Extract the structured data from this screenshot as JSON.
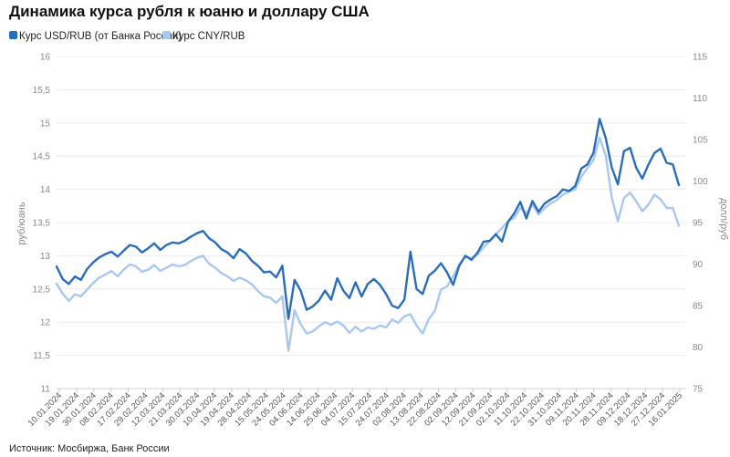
{
  "chart_data": {
    "type": "line",
    "title": "Динамика курса рубля к юаню и доллару США",
    "source": "Источник: Мосбиржа, Банк России",
    "ylabel_left": "руб/юань",
    "ylabel_right": "долл/руб",
    "ylim_left": [
      11,
      16
    ],
    "yticks_left": [
      "11",
      "11,5",
      "12",
      "12,5",
      "13",
      "13,5",
      "14",
      "14,5",
      "15",
      "15,5",
      "16"
    ],
    "ylim_right": [
      75,
      115
    ],
    "yticks_right": [
      "75",
      "80",
      "85",
      "90",
      "95",
      "100",
      "105",
      "110",
      "115"
    ],
    "x_labels": [
      "10.01.2024",
      "19.01.2024",
      "30.01.2024",
      "08.02.2024",
      "17.02.2024",
      "29.02.2024",
      "12.03.2024",
      "21.03.2024",
      "30.03.2024",
      "10.04.2024",
      "19.04.2024",
      "28.04.2024",
      "15.05.2024",
      "24.05.2024",
      "04.06.2024",
      "14.06.2024",
      "25.06.2024",
      "04.07.2024",
      "15.07.2024",
      "24.07.2024",
      "02.08.2024",
      "13.08.2024",
      "22.08.2024",
      "02.09.2024",
      "12.09.2024",
      "21.09.2024",
      "02.10.2024",
      "11.10.2024",
      "22.10.2024",
      "31.10.2024",
      "09.11.2024",
      "20.11.2024",
      "28.11.2024",
      "09.12.2024",
      "18.12.2024",
      "27.12.2024",
      "16.01.2025"
    ],
    "grid": "horizontal",
    "legend_position": "top-left",
    "series": [
      {
        "name": "Курс USD/RUB (от Банка России)",
        "axis": "right",
        "color": "#2a6ebb",
        "values": [
          89.7,
          88.2,
          87.6,
          88.5,
          88.1,
          89.4,
          90.2,
          90.8,
          91.2,
          91.5,
          90.9,
          91.6,
          92.3,
          92.1,
          91.4,
          91.9,
          92.5,
          91.7,
          92.3,
          92.6,
          92.5,
          92.8,
          93.3,
          93.7,
          94.0,
          93.1,
          92.6,
          91.8,
          91.4,
          90.7,
          91.8,
          91.3,
          90.4,
          89.8,
          89.0,
          89.1,
          88.4,
          89.8,
          83.4,
          88.1,
          86.8,
          84.5,
          84.9,
          85.6,
          86.8,
          85.7,
          88.3,
          86.8,
          85.9,
          87.8,
          86.1,
          87.6,
          88.2,
          87.5,
          86.4,
          85.0,
          84.7,
          85.7,
          91.5,
          87.0,
          86.4,
          88.6,
          89.2,
          90.1,
          89.0,
          87.5,
          89.8,
          91.0,
          90.5,
          91.4,
          92.7,
          92.8,
          93.6,
          92.7,
          95.1,
          96.1,
          97.5,
          95.5,
          97.6,
          96.3,
          97.3,
          97.8,
          98.2,
          99.0,
          98.8,
          99.4,
          101.5,
          102.0,
          103.4,
          107.5,
          105.2,
          101.6,
          99.6,
          103.6,
          104.0,
          101.6,
          100.3,
          102.0,
          103.4,
          103.9,
          102.2,
          102.0,
          99.5
        ]
      },
      {
        "name": "Курс CNY/RUB",
        "axis": "left",
        "color": "#a9c8f0",
        "values": [
          12.58,
          12.43,
          12.32,
          12.42,
          12.39,
          12.49,
          12.59,
          12.67,
          12.72,
          12.77,
          12.69,
          12.79,
          12.87,
          12.84,
          12.76,
          12.79,
          12.86,
          12.77,
          12.82,
          12.87,
          12.84,
          12.86,
          12.92,
          12.97,
          13.0,
          12.88,
          12.82,
          12.74,
          12.69,
          12.62,
          12.67,
          12.63,
          12.57,
          12.47,
          12.39,
          12.37,
          12.29,
          12.39,
          11.57,
          12.18,
          11.97,
          11.83,
          11.86,
          11.94,
          12.0,
          11.96,
          12.01,
          11.95,
          11.84,
          11.93,
          11.86,
          11.92,
          11.9,
          11.95,
          11.92,
          12.04,
          11.99,
          12.09,
          12.12,
          11.95,
          11.83,
          12.05,
          12.17,
          12.49,
          12.54,
          12.69,
          12.87,
          12.99,
          12.96,
          13.02,
          13.13,
          13.22,
          13.32,
          13.42,
          13.52,
          13.57,
          13.72,
          13.64,
          13.77,
          13.62,
          13.72,
          13.79,
          13.84,
          13.92,
          13.97,
          14.0,
          14.19,
          14.32,
          14.44,
          14.78,
          14.51,
          13.87,
          13.52,
          13.87,
          13.95,
          13.82,
          13.67,
          13.77,
          13.92,
          13.85,
          13.72,
          13.72,
          13.45
        ]
      }
    ]
  }
}
